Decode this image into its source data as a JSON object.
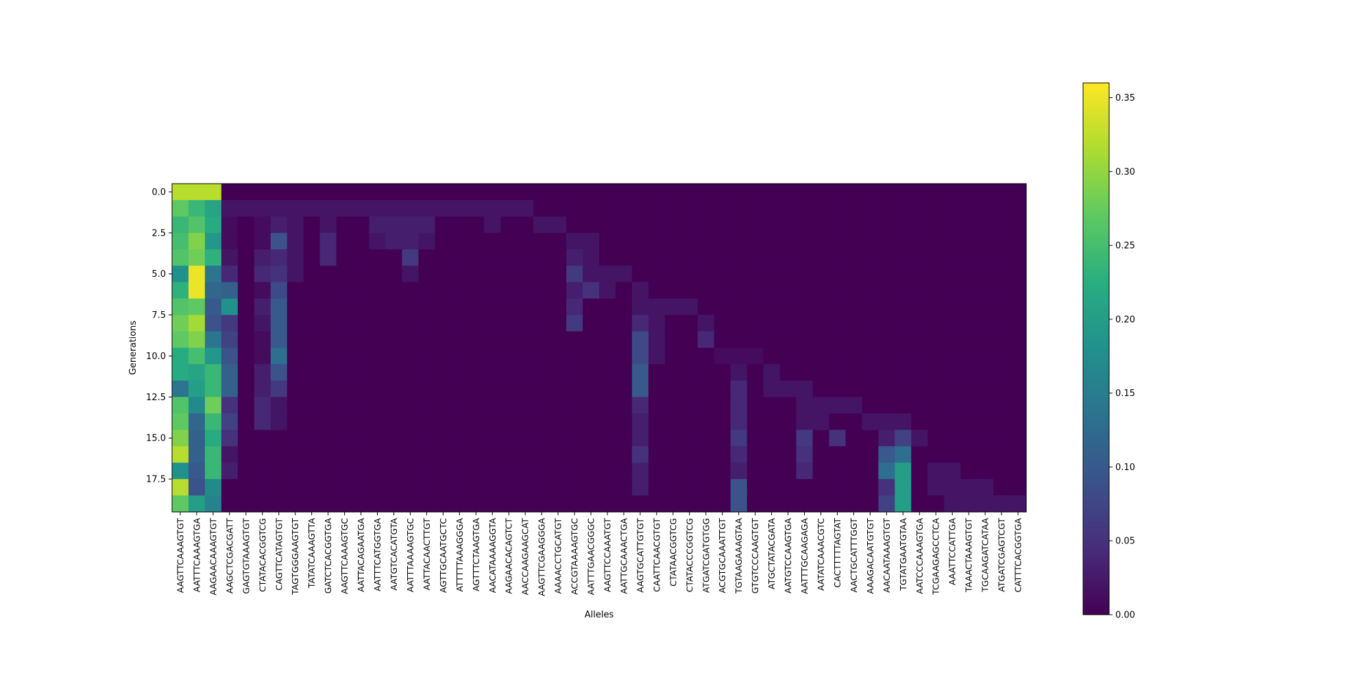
{
  "chart_data": {
    "type": "heatmap",
    "title": "",
    "xlabel": "Alleles",
    "ylabel": "Generations",
    "colormap": "viridis",
    "color_range": [
      0.0,
      0.36
    ],
    "colorbar_ticks": [
      "0.00",
      "0.05",
      "0.10",
      "0.15",
      "0.20",
      "0.25",
      "0.30",
      "0.35"
    ],
    "colorbar_tick_values": [
      0.0,
      0.05,
      0.1,
      0.15,
      0.2,
      0.25,
      0.3,
      0.35
    ],
    "y_ticks": [
      "0.0",
      "2.5",
      "5.0",
      "7.5",
      "10.0",
      "12.5",
      "15.0",
      "17.5"
    ],
    "y_tick_values": [
      0.0,
      2.5,
      5.0,
      7.5,
      10.0,
      12.5,
      15.0,
      17.5
    ],
    "generations": [
      0,
      1,
      2,
      3,
      4,
      5,
      6,
      7,
      8,
      9,
      10,
      11,
      12,
      13,
      14,
      15,
      16,
      17,
      18,
      19
    ],
    "alleles": [
      "AAGTTCAAAGTGT",
      "AATTTCAAAGTGA",
      "AAGAACAAAGTGT",
      "AAGCTCGACGATT",
      "GAGTGTAAAGTGT",
      "CTATACACGGTCG",
      "CAGTTCATAGTGT",
      "TAGTGGGAAGTGT",
      "TATATCAAAGTTA",
      "GATCTCACGGTGA",
      "AAGTTCAAAGTGC",
      "AATTACAGAATGA",
      "AATTTCATGGTGA",
      "AATGTCACATGTA",
      "AATTTAAAAGTGC",
      "AATTACAACTTGT",
      "AGTTGCAATGCTC",
      "ATTTTTAAAGGGA",
      "AGTTTCTAAGTGA",
      "AACATAAAAGGTA",
      "AAGAACACAGTCT",
      "AACCAAGAAGCAT",
      "AAGTTCGAAGGGA",
      "AAAACCTGCATGT",
      "ACCGTAAAAGTGC",
      "AATTTGAACGGGC",
      "AAGTTCCAAATGT",
      "AATTGCAAACTGA",
      "AAGTGCATTGTGT",
      "CAATTCAACGTGT",
      "CTATAACGGTCG",
      "CTATACCCGGTCG",
      "ATGATCGATGTGG",
      "ACGTGCAAATTGT",
      "TGTAAGAAAGTAA",
      "GTGTCCCAAGTGT",
      "ATGCTATACGATA",
      "AATGTCCAAGTGA",
      "AATTTGCAAGAGA",
      "AATATCAAACGTC",
      "CACTTTTTAGTAT",
      "AACTGCATTTGGT",
      "AAAGACAATGTGT",
      "AACAATAAAGTGT",
      "TGTATGAATGTAA",
      "AATCCCAAAGTGA",
      "TCGAAGAGCCTCA",
      "AAATTCCATTGA",
      "TAAACTAAAGTGT",
      "TGCAAGATCATAA",
      "ATGATCGAGTCGT",
      "CATTTCACGGTGA"
    ],
    "values": [
      [
        0.32,
        0.32,
        0.32,
        0,
        0,
        0,
        0,
        0,
        0,
        0,
        0,
        0,
        0,
        0,
        0,
        0,
        0,
        0,
        0,
        0,
        0,
        0,
        0,
        0,
        0,
        0,
        0,
        0,
        0,
        0,
        0,
        0,
        0,
        0,
        0,
        0,
        0,
        0,
        0,
        0,
        0,
        0,
        0,
        0,
        0,
        0,
        0,
        0,
        0,
        0,
        0,
        0
      ],
      [
        0.27,
        0.24,
        0.21,
        0.02,
        0.02,
        0.02,
        0.02,
        0.02,
        0.02,
        0.02,
        0.02,
        0.02,
        0.02,
        0.02,
        0.02,
        0.02,
        0.02,
        0.02,
        0.02,
        0.02,
        0.02,
        0.02,
        0.0,
        0,
        0,
        0,
        0,
        0,
        0,
        0,
        0,
        0,
        0,
        0,
        0,
        0,
        0,
        0,
        0,
        0,
        0,
        0,
        0,
        0,
        0,
        0,
        0,
        0,
        0,
        0,
        0,
        0
      ],
      [
        0.24,
        0.26,
        0.22,
        0.01,
        0.0,
        0.01,
        0.03,
        0.02,
        0.0,
        0.02,
        0.0,
        0.0,
        0.03,
        0.03,
        0.03,
        0.03,
        0.0,
        0.0,
        0.0,
        0.02,
        0.0,
        0.0,
        0.02,
        0.02,
        0,
        0,
        0,
        0,
        0,
        0,
        0,
        0,
        0,
        0,
        0,
        0,
        0,
        0,
        0,
        0,
        0,
        0,
        0,
        0,
        0,
        0,
        0,
        0,
        0,
        0,
        0,
        0
      ],
      [
        0.25,
        0.29,
        0.19,
        0.01,
        0.0,
        0.01,
        0.09,
        0.02,
        0.0,
        0.04,
        0.0,
        0.0,
        0.02,
        0.03,
        0.03,
        0.02,
        0,
        0,
        0,
        0,
        0,
        0,
        0,
        0,
        0.02,
        0.02,
        0,
        0,
        0,
        0,
        0,
        0,
        0,
        0,
        0,
        0,
        0,
        0,
        0,
        0,
        0,
        0,
        0,
        0,
        0,
        0,
        0,
        0,
        0,
        0,
        0,
        0
      ],
      [
        0.26,
        0.28,
        0.23,
        0.02,
        0.0,
        0.03,
        0.04,
        0.02,
        0.0,
        0.04,
        0,
        0,
        0,
        0,
        0.06,
        0,
        0,
        0,
        0,
        0,
        0,
        0,
        0,
        0,
        0.03,
        0.02,
        0,
        0,
        0,
        0,
        0,
        0,
        0,
        0,
        0,
        0,
        0,
        0,
        0,
        0,
        0,
        0,
        0,
        0,
        0,
        0,
        0,
        0,
        0,
        0,
        0,
        0
      ],
      [
        0.18,
        0.35,
        0.14,
        0.04,
        0.0,
        0.04,
        0.05,
        0.02,
        0,
        0,
        0,
        0,
        0,
        0,
        0.02,
        0,
        0,
        0,
        0,
        0,
        0,
        0,
        0,
        0,
        0.06,
        0.02,
        0.02,
        0.02,
        0,
        0,
        0,
        0,
        0,
        0,
        0,
        0,
        0,
        0,
        0,
        0,
        0,
        0,
        0,
        0,
        0,
        0,
        0,
        0,
        0,
        0,
        0,
        0
      ],
      [
        0.23,
        0.35,
        0.12,
        0.11,
        0.0,
        0.01,
        0.08,
        0,
        0,
        0,
        0,
        0,
        0,
        0,
        0,
        0,
        0,
        0,
        0,
        0,
        0,
        0,
        0,
        0,
        0.03,
        0.05,
        0.02,
        0,
        0.02,
        0,
        0,
        0,
        0,
        0,
        0,
        0,
        0,
        0,
        0,
        0,
        0,
        0,
        0,
        0,
        0,
        0,
        0,
        0,
        0,
        0,
        0,
        0
      ],
      [
        0.26,
        0.27,
        0.1,
        0.18,
        0.0,
        0.03,
        0.1,
        0,
        0,
        0,
        0,
        0,
        0,
        0,
        0,
        0,
        0,
        0,
        0,
        0,
        0,
        0,
        0,
        0,
        0.04,
        0,
        0,
        0,
        0.02,
        0.02,
        0.02,
        0.02,
        0,
        0,
        0,
        0,
        0,
        0,
        0,
        0,
        0,
        0,
        0,
        0,
        0,
        0,
        0,
        0,
        0,
        0,
        0,
        0
      ],
      [
        0.28,
        0.31,
        0.09,
        0.06,
        0.0,
        0.02,
        0.1,
        0,
        0,
        0,
        0,
        0,
        0,
        0,
        0,
        0,
        0,
        0,
        0,
        0,
        0,
        0,
        0,
        0,
        0.06,
        0,
        0,
        0,
        0.04,
        0.02,
        0,
        0,
        0.02,
        0,
        0,
        0,
        0,
        0,
        0,
        0,
        0,
        0,
        0,
        0,
        0,
        0,
        0,
        0,
        0,
        0,
        0,
        0
      ],
      [
        0.27,
        0.29,
        0.14,
        0.07,
        0.0,
        0.01,
        0.1,
        0,
        0,
        0,
        0,
        0,
        0,
        0,
        0,
        0,
        0,
        0,
        0,
        0,
        0,
        0,
        0,
        0,
        0,
        0,
        0,
        0,
        0.08,
        0.02,
        0,
        0,
        0.04,
        0,
        0,
        0,
        0,
        0,
        0,
        0,
        0,
        0,
        0,
        0,
        0,
        0,
        0,
        0,
        0,
        0,
        0,
        0
      ],
      [
        0.22,
        0.25,
        0.19,
        0.09,
        0.0,
        0.01,
        0.13,
        0,
        0,
        0,
        0,
        0,
        0,
        0,
        0,
        0,
        0,
        0,
        0,
        0,
        0,
        0,
        0,
        0,
        0,
        0,
        0,
        0,
        0.08,
        0.02,
        0,
        0,
        0,
        0.01,
        0.01,
        0.01,
        0,
        0,
        0,
        0,
        0,
        0,
        0,
        0,
        0,
        0,
        0,
        0,
        0,
        0,
        0,
        0
      ],
      [
        0.22,
        0.21,
        0.24,
        0.11,
        0.0,
        0.03,
        0.09,
        0,
        0,
        0,
        0,
        0,
        0,
        0,
        0,
        0,
        0,
        0,
        0,
        0,
        0,
        0,
        0,
        0,
        0,
        0,
        0,
        0,
        0.1,
        0,
        0,
        0,
        0,
        0,
        0.02,
        0,
        0.02,
        0,
        0,
        0,
        0,
        0,
        0,
        0,
        0,
        0,
        0,
        0,
        0,
        0,
        0,
        0
      ],
      [
        0.14,
        0.2,
        0.24,
        0.11,
        0.0,
        0.03,
        0.06,
        0,
        0,
        0,
        0,
        0,
        0,
        0,
        0,
        0,
        0,
        0,
        0,
        0,
        0,
        0,
        0,
        0,
        0,
        0,
        0,
        0,
        0.1,
        0,
        0,
        0,
        0,
        0,
        0.04,
        0,
        0.02,
        0.02,
        0.02,
        0,
        0,
        0,
        0,
        0,
        0,
        0,
        0,
        0,
        0,
        0,
        0,
        0
      ],
      [
        0.26,
        0.17,
        0.28,
        0.05,
        0.0,
        0.04,
        0.02,
        0,
        0,
        0,
        0,
        0,
        0,
        0,
        0,
        0,
        0,
        0,
        0,
        0,
        0,
        0,
        0,
        0,
        0,
        0,
        0,
        0,
        0.04,
        0,
        0,
        0,
        0,
        0,
        0.04,
        0,
        0,
        0,
        0.02,
        0.02,
        0.02,
        0.02,
        0,
        0,
        0,
        0,
        0,
        0,
        0,
        0,
        0,
        0
      ],
      [
        0.27,
        0.12,
        0.24,
        0.07,
        0.0,
        0.04,
        0.02,
        0,
        0,
        0,
        0,
        0,
        0,
        0,
        0,
        0,
        0,
        0,
        0,
        0,
        0,
        0,
        0,
        0,
        0,
        0,
        0,
        0,
        0.03,
        0,
        0,
        0,
        0,
        0,
        0.04,
        0,
        0,
        0,
        0.02,
        0.02,
        0,
        0,
        0.02,
        0.02,
        0.02,
        0,
        0,
        0,
        0,
        0,
        0,
        0
      ],
      [
        0.29,
        0.11,
        0.22,
        0.05,
        0,
        0,
        0,
        0,
        0,
        0,
        0,
        0,
        0,
        0,
        0,
        0,
        0,
        0,
        0,
        0,
        0,
        0,
        0,
        0,
        0,
        0,
        0,
        0,
        0.03,
        0,
        0,
        0,
        0,
        0,
        0.06,
        0,
        0,
        0,
        0.06,
        0,
        0.05,
        0,
        0,
        0.03,
        0.07,
        0.02,
        0,
        0,
        0,
        0,
        0,
        0
      ],
      [
        0.32,
        0.11,
        0.24,
        0.02,
        0,
        0,
        0,
        0,
        0,
        0,
        0,
        0,
        0,
        0,
        0,
        0,
        0,
        0,
        0,
        0,
        0,
        0,
        0,
        0,
        0,
        0,
        0,
        0,
        0.05,
        0,
        0,
        0,
        0,
        0,
        0.04,
        0,
        0,
        0,
        0.05,
        0,
        0,
        0,
        0,
        0.1,
        0.13,
        0,
        0,
        0,
        0,
        0,
        0,
        0
      ],
      [
        0.18,
        0.1,
        0.24,
        0.03,
        0,
        0,
        0,
        0,
        0,
        0,
        0,
        0,
        0,
        0,
        0,
        0,
        0,
        0,
        0,
        0,
        0,
        0,
        0,
        0,
        0,
        0,
        0,
        0,
        0.03,
        0,
        0,
        0,
        0,
        0,
        0.03,
        0,
        0,
        0,
        0.04,
        0,
        0,
        0,
        0,
        0.13,
        0.2,
        0,
        0.02,
        0.02,
        0,
        0,
        0,
        0
      ],
      [
        0.32,
        0.09,
        0.17,
        0,
        0,
        0,
        0,
        0,
        0,
        0,
        0,
        0,
        0,
        0,
        0,
        0,
        0,
        0,
        0,
        0,
        0,
        0,
        0,
        0,
        0,
        0,
        0,
        0,
        0.03,
        0,
        0,
        0,
        0,
        0,
        0.09,
        0,
        0,
        0,
        0,
        0,
        0,
        0,
        0,
        0.05,
        0.2,
        0,
        0.02,
        0.02,
        0.02,
        0.02,
        0,
        0
      ],
      [
        0.27,
        0.2,
        0.16,
        0,
        0,
        0,
        0,
        0,
        0,
        0,
        0,
        0,
        0,
        0,
        0,
        0,
        0,
        0,
        0,
        0,
        0,
        0,
        0,
        0,
        0,
        0,
        0,
        0,
        0,
        0,
        0,
        0,
        0,
        0,
        0.09,
        0,
        0,
        0,
        0,
        0,
        0,
        0,
        0,
        0.07,
        0.2,
        0,
        0,
        0.02,
        0.02,
        0.02,
        0.02,
        0.02
      ]
    ]
  }
}
